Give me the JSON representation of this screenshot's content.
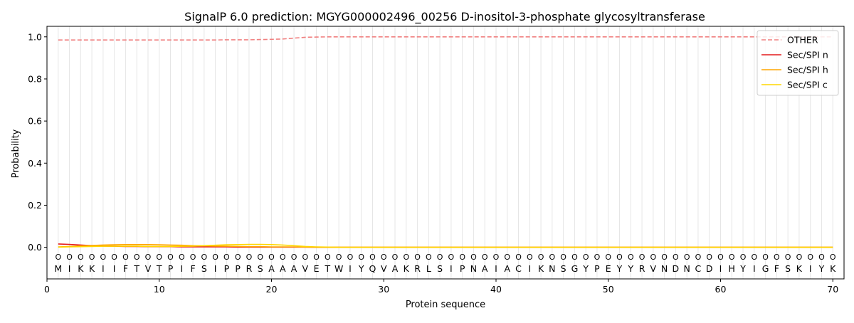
{
  "chart_data": {
    "type": "line",
    "title": "SignalP 6.0 prediction: MGYG000002496_00256 D-inositol-3-phosphate glycosyltransferase",
    "xlabel": "Protein sequence",
    "ylabel": "Probability",
    "xlim": [
      0,
      71
    ],
    "ylim": [
      -0.15,
      1.05
    ],
    "xticks": [
      0,
      10,
      20,
      30,
      40,
      50,
      60,
      70
    ],
    "yticks": [
      0.0,
      0.2,
      0.4,
      0.6,
      0.8,
      1.0
    ],
    "legend_position": "top-right",
    "grid": "vertical lines at each residue",
    "sequence": [
      "M",
      "I",
      "K",
      "K",
      "I",
      "I",
      "F",
      "T",
      "V",
      "T",
      "P",
      "I",
      "F",
      "S",
      "I",
      "P",
      "P",
      "R",
      "S",
      "A",
      "A",
      "A",
      "V",
      "E",
      "T",
      "W",
      "I",
      "Y",
      "Q",
      "V",
      "A",
      "K",
      "R",
      "L",
      "S",
      "I",
      "P",
      "N",
      "A",
      "I",
      "A",
      "C",
      "I",
      "K",
      "N",
      "S",
      "G",
      "Y",
      "P",
      "E",
      "Y",
      "Y",
      "R",
      "V",
      "N",
      "D",
      "N",
      "C",
      "D",
      "I",
      "H",
      "Y",
      "I",
      "G",
      "F",
      "S",
      "K",
      "I",
      "Y",
      "K"
    ],
    "label_row": [
      "O",
      "O",
      "O",
      "O",
      "O",
      "O",
      "O",
      "O",
      "O",
      "O",
      "O",
      "O",
      "O",
      "O",
      "O",
      "O",
      "O",
      "O",
      "O",
      "O",
      "O",
      "O",
      "O",
      "O",
      "O",
      "O",
      "O",
      "O",
      "O",
      "O",
      "O",
      "O",
      "O",
      "O",
      "O",
      "O",
      "O",
      "O",
      "O",
      "O",
      "O",
      "O",
      "O",
      "O",
      "O",
      "O",
      "O",
      "O",
      "O",
      "O",
      "O",
      "O",
      "O",
      "O",
      "O",
      "O",
      "O",
      "O",
      "O",
      "O",
      "O",
      "O",
      "O",
      "O",
      "O",
      "O",
      "O",
      "O",
      "O",
      "O"
    ],
    "series": [
      {
        "name": "OTHER",
        "color": "#f08080",
        "style": "dashed",
        "values": [
          0.985,
          0.985,
          0.985,
          0.985,
          0.985,
          0.985,
          0.985,
          0.985,
          0.985,
          0.985,
          0.985,
          0.985,
          0.985,
          0.985,
          0.985,
          0.986,
          0.986,
          0.986,
          0.987,
          0.988,
          0.99,
          0.994,
          0.998,
          0.999,
          1.0,
          1.0,
          1.0,
          1.0,
          1.0,
          1.0,
          1.0,
          1.0,
          1.0,
          1.0,
          1.0,
          1.0,
          1.0,
          1.0,
          1.0,
          1.0,
          1.0,
          1.0,
          1.0,
          1.0,
          1.0,
          1.0,
          1.0,
          1.0,
          1.0,
          1.0,
          1.0,
          1.0,
          1.0,
          1.0,
          1.0,
          1.0,
          1.0,
          1.0,
          1.0,
          1.0,
          1.0,
          1.0,
          1.0,
          1.0,
          1.0,
          1.0,
          1.0,
          1.0,
          1.0,
          1.0
        ]
      },
      {
        "name": "Sec/SPI n",
        "color": "#e41a1c",
        "style": "solid",
        "values": [
          0.016,
          0.014,
          0.011,
          0.008,
          0.006,
          0.005,
          0.004,
          0.004,
          0.003,
          0.003,
          0.003,
          0.002,
          0.002,
          0.002,
          0.002,
          0.002,
          0.001,
          0.001,
          0.001,
          0.001,
          0.001,
          0.001,
          0.001,
          0.0,
          0.0,
          0.0,
          0.0,
          0.0,
          0.0,
          0.0,
          0.0,
          0.0,
          0.0,
          0.0,
          0.0,
          0.0,
          0.0,
          0.0,
          0.0,
          0.0,
          0.0,
          0.0,
          0.0,
          0.0,
          0.0,
          0.0,
          0.0,
          0.0,
          0.0,
          0.0,
          0.0,
          0.0,
          0.0,
          0.0,
          0.0,
          0.0,
          0.0,
          0.0,
          0.0,
          0.0,
          0.0,
          0.0,
          0.0,
          0.0,
          0.0,
          0.0,
          0.0,
          0.0,
          0.0,
          0.0
        ]
      },
      {
        "name": "Sec/SPI h",
        "color": "#ffa500",
        "style": "solid",
        "values": [
          0.002,
          0.004,
          0.007,
          0.009,
          0.011,
          0.012,
          0.013,
          0.013,
          0.013,
          0.012,
          0.011,
          0.01,
          0.008,
          0.007,
          0.006,
          0.005,
          0.004,
          0.003,
          0.003,
          0.002,
          0.002,
          0.002,
          0.001,
          0.0,
          0.0,
          0.0,
          0.0,
          0.0,
          0.0,
          0.0,
          0.0,
          0.0,
          0.0,
          0.0,
          0.0,
          0.0,
          0.0,
          0.0,
          0.0,
          0.0,
          0.0,
          0.0,
          0.0,
          0.0,
          0.0,
          0.0,
          0.0,
          0.0,
          0.0,
          0.0,
          0.0,
          0.0,
          0.0,
          0.0,
          0.0,
          0.0,
          0.0,
          0.0,
          0.0,
          0.0,
          0.0,
          0.0,
          0.0,
          0.0,
          0.0,
          0.0,
          0.0,
          0.0,
          0.0,
          0.0
        ]
      },
      {
        "name": "Sec/SPI c",
        "color": "#ffd700",
        "style": "solid",
        "values": [
          0.001,
          0.002,
          0.003,
          0.004,
          0.005,
          0.005,
          0.005,
          0.005,
          0.004,
          0.004,
          0.004,
          0.005,
          0.006,
          0.008,
          0.01,
          0.012,
          0.013,
          0.014,
          0.014,
          0.013,
          0.011,
          0.008,
          0.004,
          0.002,
          0.001,
          0.0,
          0.0,
          0.0,
          0.0,
          0.0,
          0.0,
          0.0,
          0.0,
          0.0,
          0.0,
          0.0,
          0.0,
          0.0,
          0.0,
          0.0,
          0.0,
          0.0,
          0.0,
          0.0,
          0.0,
          0.0,
          0.0,
          0.0,
          0.0,
          0.0,
          0.0,
          0.0,
          0.0,
          0.0,
          0.0,
          0.0,
          0.0,
          0.0,
          0.0,
          0.0,
          0.0,
          0.0,
          0.0,
          0.0,
          0.0,
          0.0,
          0.0,
          0.0,
          0.0,
          0.0
        ]
      }
    ]
  }
}
